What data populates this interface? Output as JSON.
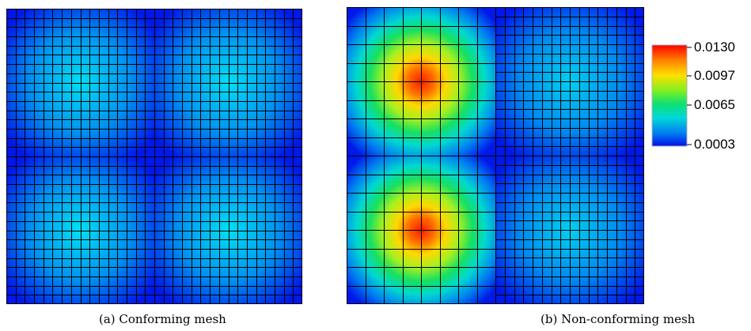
{
  "figure": {
    "panel_a": {
      "caption": "(a) Conforming mesh",
      "grid_subdivisions": 32
    },
    "panel_b": {
      "caption": "(b) Non-conforming mesh",
      "left_half_grid_subdivisions": 8,
      "right_half_grid_subdivisions": 16
    },
    "colorbar": {
      "ticks": [
        "0.0130",
        "0.0097",
        "0.0065",
        "0.0003"
      ],
      "min": 0.0003,
      "max": 0.013
    }
  },
  "colors": {
    "background": "#ffffff",
    "mesh_line": "#000000"
  }
}
